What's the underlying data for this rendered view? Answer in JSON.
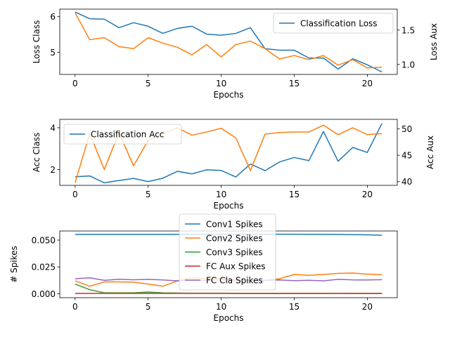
{
  "chart_data": [
    {
      "type": "line",
      "xlabel": "Epochs",
      "ylabel": "Loss Class",
      "ylabel_right": "Loss Aux",
      "xlim": [
        -1.05,
        22.05
      ],
      "ylim": [
        4.38,
        6.21
      ],
      "ylim_right": [
        0.855,
        1.805
      ],
      "xticks": [
        0,
        5,
        10,
        15,
        20
      ],
      "yticks": [
        5,
        6
      ],
      "yticks_right": [
        1.0,
        1.5
      ],
      "yticks_right_labels": [
        "1.0",
        "1.5"
      ],
      "legend": "upper right",
      "legend_entries": [
        "Classification Loss"
      ],
      "series": [
        {
          "name": "Classification Loss",
          "axis": "left",
          "color": "#1f77b4",
          "x": [
            0,
            1,
            2,
            3,
            4,
            5,
            6,
            7,
            8,
            9,
            10,
            11,
            12,
            13,
            14,
            15,
            16,
            17,
            18,
            19,
            20,
            21
          ],
          "values": [
            6.13,
            5.94,
            5.93,
            5.69,
            5.83,
            5.73,
            5.53,
            5.67,
            5.73,
            5.51,
            5.48,
            5.53,
            5.69,
            5.1,
            5.06,
            5.06,
            4.84,
            4.84,
            4.53,
            4.82,
            4.65,
            4.45
          ]
        },
        {
          "axis": "right",
          "color": "#ff7f0e",
          "x": [
            0,
            1,
            2,
            3,
            4,
            5,
            6,
            7,
            8,
            9,
            10,
            11,
            12,
            13,
            14,
            15,
            16,
            17,
            18,
            19,
            20,
            21
          ],
          "values": [
            1.75,
            1.36,
            1.39,
            1.26,
            1.23,
            1.39,
            1.31,
            1.25,
            1.14,
            1.29,
            1.11,
            1.29,
            1.34,
            1.23,
            1.08,
            1.13,
            1.07,
            1.13,
            0.99,
            1.07,
            0.95,
            0.96
          ]
        }
      ]
    },
    {
      "type": "line",
      "xlabel": "Epochs",
      "ylabel": "Acc Class",
      "ylabel_right": "Acc Aux",
      "xlim": [
        -1.05,
        22.05
      ],
      "ylim": [
        1.25,
        4.4
      ],
      "ylim_right": [
        39.3,
        51.8
      ],
      "xticks": [
        0,
        5,
        10,
        15,
        20
      ],
      "yticks": [
        2,
        4
      ],
      "yticks_right": [
        40,
        45,
        50
      ],
      "legend": "upper left",
      "legend_entries": [
        "Classification Acc"
      ],
      "series": [
        {
          "name": "Classification Acc",
          "axis": "left",
          "color": "#1f77b4",
          "x": [
            0,
            1,
            2,
            3,
            4,
            5,
            6,
            7,
            8,
            9,
            10,
            11,
            12,
            13,
            14,
            15,
            16,
            17,
            18,
            19,
            20,
            21
          ],
          "values": [
            1.66,
            1.7,
            1.37,
            1.48,
            1.58,
            1.43,
            1.59,
            1.92,
            1.8,
            1.99,
            1.96,
            1.65,
            2.27,
            1.95,
            2.37,
            2.58,
            2.43,
            3.82,
            2.4,
            3.06,
            2.82,
            4.2
          ]
        },
        {
          "axis": "right",
          "color": "#ff7f0e",
          "x": [
            0,
            1,
            2,
            3,
            4,
            5,
            6,
            7,
            8,
            9,
            10,
            11,
            12,
            13,
            14,
            15,
            16,
            17,
            18,
            19,
            20,
            21
          ],
          "values": [
            39.8,
            49.1,
            42.3,
            49.3,
            43.0,
            47.8,
            49.1,
            50.2,
            48.8,
            49.4,
            50.1,
            48.3,
            42.1,
            49.0,
            49.3,
            49.4,
            49.4,
            50.7,
            48.9,
            50.2,
            48.9,
            49.1
          ]
        }
      ]
    },
    {
      "type": "line",
      "xlabel": "Epochs",
      "ylabel": "# Spikes",
      "xlim": [
        -1.05,
        22.05
      ],
      "ylim": [
        -0.0037,
        0.0585
      ],
      "xticks": [
        0,
        5,
        10,
        15,
        20
      ],
      "yticks": [
        0.0,
        0.025,
        0.05
      ],
      "yticks_labels": [
        "0.000",
        "0.025",
        "0.050"
      ],
      "legend": "center",
      "legend_entries": [
        "Conv1 Spikes",
        "Conv2 Spikes",
        "Conv3 Spikes",
        "FC Aux Spikes",
        "FC Cla Spikes"
      ],
      "series": [
        {
          "name": "Conv1 Spikes",
          "color": "#1f77b4",
          "x": [
            0,
            1,
            2,
            3,
            4,
            5,
            6,
            7,
            8,
            9,
            10,
            11,
            12,
            13,
            14,
            15,
            16,
            17,
            18,
            19,
            20,
            21
          ],
          "values": [
            0.0553,
            0.0553,
            0.0553,
            0.0553,
            0.0553,
            0.0553,
            0.0553,
            0.0554,
            0.0555,
            0.0555,
            0.0555,
            0.0555,
            0.0555,
            0.0555,
            0.0555,
            0.0555,
            0.0554,
            0.0554,
            0.0553,
            0.0551,
            0.0549,
            0.0546
          ]
        },
        {
          "name": "Conv2 Spikes",
          "color": "#ff7f0e",
          "x": [
            0,
            1,
            2,
            3,
            4,
            5,
            6,
            7,
            8,
            9,
            10,
            11,
            12,
            13,
            14,
            15,
            16,
            17,
            18,
            19,
            20,
            21
          ],
          "values": [
            0.012,
            0.007,
            0.011,
            0.011,
            0.0108,
            0.009,
            0.007,
            0.012,
            0.015,
            0.014,
            0.0145,
            0.013,
            0.012,
            0.0125,
            0.014,
            0.018,
            0.0172,
            0.018,
            0.019,
            0.0193,
            0.0182,
            0.0178
          ]
        },
        {
          "name": "Conv3 Spikes",
          "color": "#2ca02c",
          "x": [
            0,
            1,
            2,
            3,
            4,
            5,
            6,
            7,
            8,
            9,
            10,
            11,
            12,
            13,
            14,
            15,
            16,
            17,
            18,
            19,
            20,
            21
          ],
          "values": [
            0.009,
            0.0038,
            0.0008,
            0.0008,
            0.0008,
            0.0015,
            0.0008,
            0.0006,
            0.0005,
            0.0005,
            0.0005,
            0.0004,
            0.0004,
            0.0004,
            0.0004,
            0.0004,
            0.0004,
            0.0004,
            0.0004,
            0.0004,
            0.0004,
            0.0004
          ]
        },
        {
          "name": "FC Aux Spikes",
          "color": "#d62728",
          "x": [
            0,
            1,
            2,
            3,
            4,
            5,
            6,
            7,
            8,
            9,
            10,
            11,
            12,
            13,
            14,
            15,
            16,
            17,
            18,
            19,
            20,
            21
          ],
          "values": [
            0.0003,
            0.0003,
            0.0003,
            0.0003,
            0.0003,
            0.0003,
            0.0003,
            0.0003,
            0.0003,
            0.0003,
            0.0003,
            0.0002,
            0.0002,
            0.0002,
            0.0002,
            0.0002,
            0.0002,
            0.0002,
            0.0003,
            0.0002,
            0.0002,
            0.0002
          ]
        },
        {
          "name": "FC Cla Spikes",
          "color": "#9467bd",
          "x": [
            0,
            1,
            2,
            3,
            4,
            5,
            6,
            7,
            8,
            9,
            10,
            11,
            12,
            13,
            14,
            15,
            16,
            17,
            18,
            19,
            20,
            21
          ],
          "values": [
            0.014,
            0.0148,
            0.0125,
            0.0135,
            0.013,
            0.0134,
            0.0128,
            0.012,
            0.0127,
            0.0124,
            0.0131,
            0.0124,
            0.012,
            0.0124,
            0.0128,
            0.0122,
            0.0125,
            0.012,
            0.0134,
            0.0129,
            0.0128,
            0.0131
          ]
        }
      ]
    }
  ]
}
